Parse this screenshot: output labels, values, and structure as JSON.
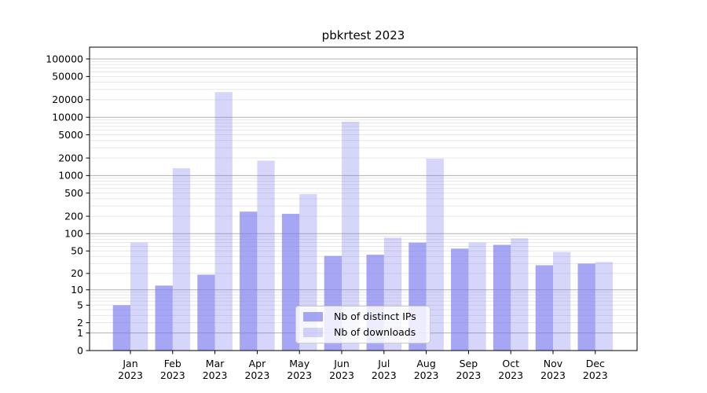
{
  "chart_data": {
    "type": "bar",
    "title": "pbkrtest 2023",
    "months": [
      "Jan",
      "Feb",
      "Mar",
      "Apr",
      "May",
      "Jun",
      "Jul",
      "Aug",
      "Sep",
      "Oct",
      "Nov",
      "Dec"
    ],
    "year_label": "2023",
    "series": [
      {
        "name": "Nb of distinct IPs",
        "color": "#7b7bf0",
        "opacity": 0.67,
        "values": [
          5,
          12,
          19,
          240,
          220,
          41,
          43,
          70,
          55,
          64,
          28,
          30
        ]
      },
      {
        "name": "Nb of downloads",
        "color": "#7b7bf0",
        "opacity": 0.31,
        "values": [
          70,
          1340,
          27000,
          1800,
          480,
          8400,
          85,
          1950,
          70,
          83,
          48,
          32
        ]
      }
    ],
    "yscale": "log10(value+1)",
    "yticks": [
      0,
      1,
      2,
      5,
      10,
      20,
      50,
      100,
      200,
      500,
      1000,
      2000,
      5000,
      10000,
      20000,
      50000,
      100000
    ],
    "ylim": [
      0,
      150000
    ],
    "grid": {
      "major": true,
      "minor": true
    },
    "legend_position": "lower center",
    "xlabel": "",
    "ylabel": ""
  },
  "colors": {
    "major_grid": "#b0b0b0",
    "minor_grid": "#e7e7e7",
    "spine": "#000000",
    "text": "#000000",
    "legend_border": "#cccccc",
    "background": "#ffffff"
  }
}
